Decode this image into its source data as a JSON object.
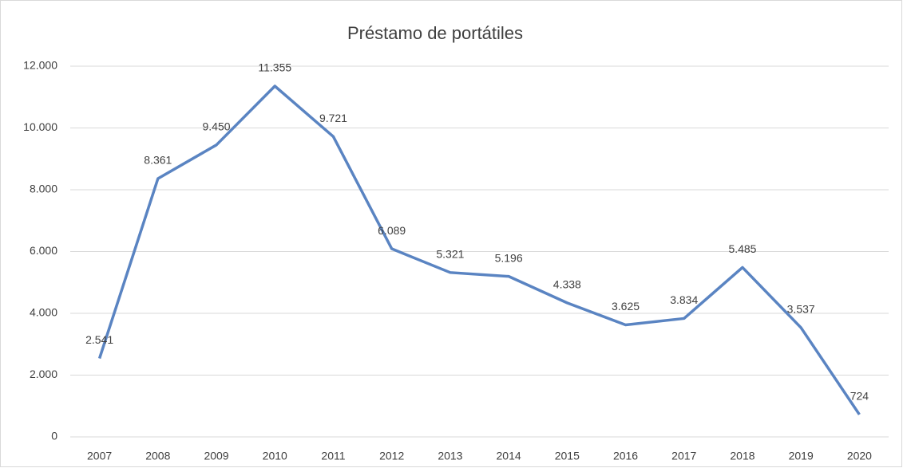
{
  "chart_data": {
    "type": "line",
    "title": "Préstamo de portátiles",
    "categories": [
      "2007",
      "2008",
      "2009",
      "2010",
      "2011",
      "2012",
      "2013",
      "2014",
      "2015",
      "2016",
      "2017",
      "2018",
      "2019",
      "2020"
    ],
    "series": [
      {
        "color": "#5a84c2",
        "values": [
          2541,
          8361,
          9450,
          11355,
          9721,
          6089,
          5321,
          5196,
          4338,
          3625,
          3834,
          5485,
          3537,
          724
        ],
        "value_labels": [
          "2.541",
          "8.361",
          "9.450",
          "11.355",
          "9.721",
          "6.089",
          "5.321",
          "5.196",
          "4.338",
          "3.625",
          "3.834",
          "5.485",
          "3.537",
          "724"
        ]
      }
    ],
    "ylim": [
      0,
      12000
    ],
    "yticks": [
      0,
      {
        "value": 2000,
        "label": "2.000"
      },
      {
        "value": 4000,
        "label": "4.000"
      },
      {
        "value": 6000,
        "label": "6.000"
      },
      {
        "value": 8000,
        "label": "8.000"
      },
      {
        "value": 10000,
        "label": "10.000"
      },
      {
        "value": 12000,
        "label": "12.000"
      }
    ],
    "grid": true
  }
}
